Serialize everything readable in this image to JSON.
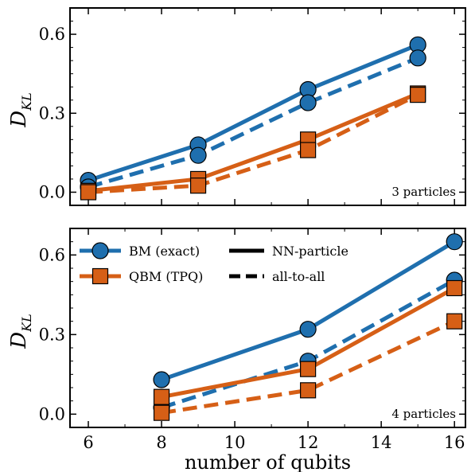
{
  "chart_data": [
    {
      "type": "line",
      "title": "",
      "xlabel": "",
      "ylabel": "D_KL",
      "ylabel_main": "D",
      "ylabel_sub": "KL",
      "xlim": [
        5.5,
        16.3
      ],
      "ylim": [
        -0.05,
        0.7
      ],
      "xticks": [
        6,
        8,
        10,
        12,
        14,
        16
      ],
      "yticks": [
        0.0,
        0.3,
        0.6
      ],
      "ytick_labels": [
        "0.0",
        "0.3",
        "0.6"
      ],
      "show_xtick_labels": false,
      "annotation": "3 particles",
      "series": [
        {
          "color": "#1f6fae",
          "marker": "circle",
          "linestyle": "solid",
          "x": [
            6,
            9,
            12,
            15
          ],
          "y": [
            0.045,
            0.18,
            0.39,
            0.56
          ]
        },
        {
          "color": "#1f6fae",
          "marker": "circle",
          "linestyle": "dashed",
          "x": [
            6,
            9,
            12,
            15
          ],
          "y": [
            0.02,
            0.14,
            0.34,
            0.51
          ]
        },
        {
          "color": "#d65f16",
          "marker": "square",
          "linestyle": "solid",
          "x": [
            6,
            9,
            12,
            15
          ],
          "y": [
            0.005,
            0.05,
            0.2,
            0.375
          ]
        },
        {
          "color": "#d65f16",
          "marker": "square",
          "linestyle": "dashed",
          "x": [
            6,
            9,
            12,
            15
          ],
          "y": [
            0.0,
            0.025,
            0.16,
            0.37
          ]
        }
      ]
    },
    {
      "type": "line",
      "title": "",
      "xlabel": "number of qubits",
      "ylabel": "D_KL",
      "ylabel_main": "D",
      "ylabel_sub": "KL",
      "xlim": [
        5.5,
        16.3
      ],
      "ylim": [
        -0.05,
        0.7
      ],
      "xticks": [
        6,
        8,
        10,
        12,
        14,
        16
      ],
      "xtick_labels": [
        "6",
        "8",
        "10",
        "12",
        "14",
        "16"
      ],
      "yticks": [
        0.0,
        0.3,
        0.6
      ],
      "ytick_labels": [
        "0.0",
        "0.3",
        "0.6"
      ],
      "show_xtick_labels": true,
      "annotation": "4 particles",
      "series": [
        {
          "color": "#1f6fae",
          "marker": "circle",
          "linestyle": "solid",
          "x": [
            8,
            12,
            16
          ],
          "y": [
            0.13,
            0.32,
            0.65
          ]
        },
        {
          "color": "#1f6fae",
          "marker": "circle",
          "linestyle": "dashed",
          "x": [
            8,
            12,
            16
          ],
          "y": [
            0.025,
            0.2,
            0.505
          ]
        },
        {
          "color": "#d65f16",
          "marker": "square",
          "linestyle": "solid",
          "x": [
            8,
            12,
            16
          ],
          "y": [
            0.065,
            0.17,
            0.475
          ]
        },
        {
          "color": "#d65f16",
          "marker": "square",
          "linestyle": "dashed",
          "x": [
            8,
            12,
            16
          ],
          "y": [
            0.005,
            0.09,
            0.35
          ]
        }
      ],
      "legend": {
        "placement": "top-left",
        "markers": [
          {
            "label": "BM (exact)",
            "color": "#1f6fae",
            "marker": "circle"
          },
          {
            "label": "QBM (TPQ)",
            "color": "#d65f16",
            "marker": "square"
          }
        ],
        "linestyles": [
          {
            "label": "NN-particle",
            "linestyle": "solid"
          },
          {
            "label": "all-to-all",
            "linestyle": "dashed"
          }
        ]
      }
    }
  ]
}
